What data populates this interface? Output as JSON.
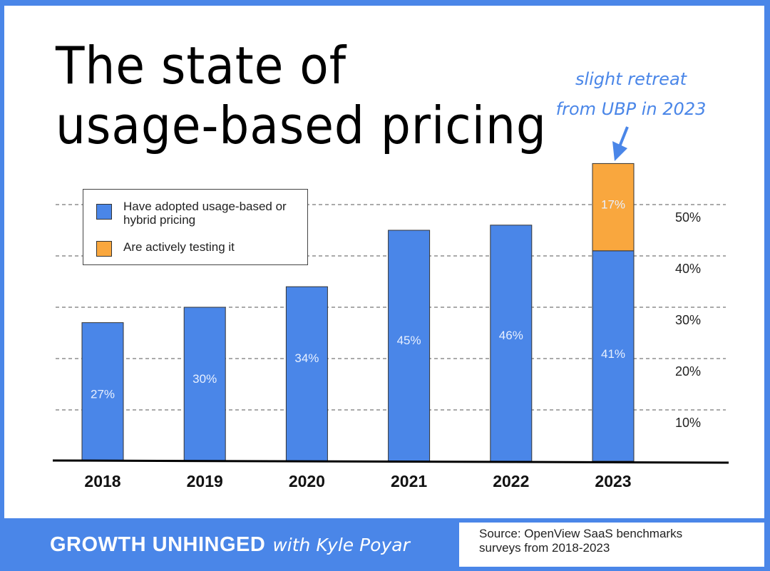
{
  "title": [
    "The state of",
    "usage-based pricing"
  ],
  "annotation": [
    "slight retreat",
    "from UBP in 2023"
  ],
  "colors": {
    "frame": "#4a86e8",
    "adopted": "#4a86e8",
    "testing": "#f9a73e"
  },
  "legend": {
    "adopted": "Have adopted usage-based or hybrid pricing",
    "testing": "Are actively testing it"
  },
  "chart_data": {
    "type": "bar",
    "stacked": true,
    "categories": [
      "2018",
      "2019",
      "2020",
      "2021",
      "2022",
      "2023"
    ],
    "series": [
      {
        "name": "Have adopted usage-based or hybrid pricing",
        "values": [
          27,
          30,
          34,
          45,
          46,
          41
        ],
        "labels": [
          "27%",
          "30%",
          "34%",
          "45%",
          "46%",
          "41%"
        ]
      },
      {
        "name": "Are actively testing it",
        "values": [
          null,
          null,
          null,
          null,
          null,
          17
        ],
        "labels": [
          null,
          null,
          null,
          null,
          null,
          "17%"
        ]
      }
    ],
    "yticks": [
      10,
      20,
      30,
      40,
      50
    ],
    "ytick_labels": [
      "10%",
      "20%",
      "30%",
      "40%",
      "50%"
    ],
    "ylim": [
      0,
      60
    ],
    "grid": true,
    "legend_position": "top-left",
    "yaxis_position": "right"
  },
  "footer": {
    "brand": "GROWTH UNHINGED",
    "brand_sub": "with Kyle Poyar",
    "source": [
      "Source: OpenView SaaS benchmarks",
      "surveys from 2018-2023"
    ]
  }
}
